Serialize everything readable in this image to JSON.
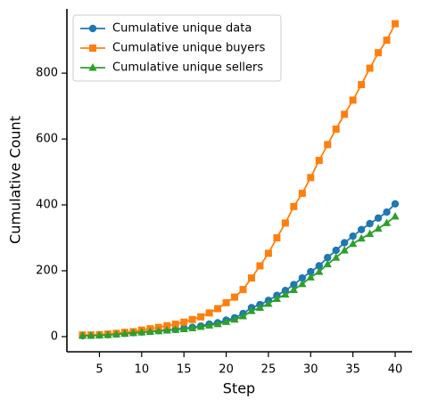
{
  "chart_data": {
    "type": "line",
    "xlabel": "Step",
    "ylabel": "Cumulative Count",
    "x": [
      3,
      4,
      5,
      6,
      7,
      8,
      9,
      10,
      11,
      12,
      13,
      14,
      15,
      16,
      17,
      18,
      19,
      20,
      21,
      22,
      23,
      24,
      25,
      26,
      27,
      28,
      29,
      30,
      31,
      32,
      33,
      34,
      35,
      36,
      37,
      38,
      39,
      40
    ],
    "series": [
      {
        "name": "Cumulative unique data",
        "color": "#1f77b4",
        "marker": "circle",
        "values": [
          3,
          4,
          5,
          6,
          8,
          10,
          12,
          14,
          16,
          18,
          20,
          22,
          25,
          28,
          32,
          38,
          42,
          50,
          57,
          70,
          88,
          97,
          110,
          125,
          140,
          158,
          178,
          197,
          215,
          240,
          262,
          285,
          305,
          325,
          343,
          360,
          378,
          403
        ]
      },
      {
        "name": "Cumulative unique buyers",
        "color": "#ff7f0e",
        "marker": "square",
        "values": [
          5,
          5,
          6,
          8,
          10,
          13,
          15,
          20,
          24,
          28,
          33,
          38,
          44,
          52,
          60,
          72,
          85,
          103,
          120,
          143,
          178,
          215,
          253,
          300,
          345,
          395,
          435,
          483,
          535,
          583,
          630,
          675,
          718,
          765,
          815,
          862,
          900,
          950
        ]
      },
      {
        "name": "Cumulative unique sellers",
        "color": "#2ca02c",
        "marker": "triangle",
        "values": [
          3,
          3,
          4,
          5,
          7,
          9,
          11,
          13,
          15,
          17,
          19,
          21,
          23,
          26,
          30,
          34,
          38,
          45,
          52,
          62,
          78,
          88,
          100,
          115,
          128,
          142,
          160,
          180,
          197,
          220,
          240,
          262,
          282,
          298,
          312,
          328,
          345,
          365
        ]
      }
    ],
    "xlim": [
      1.15,
      42.0
    ],
    "xticks": [
      5,
      10,
      15,
      20,
      25,
      30,
      35,
      40
    ],
    "ylim": [
      -46,
      995
    ],
    "yticks": [
      0,
      200,
      400,
      600,
      800
    ],
    "legend": "upper left",
    "grid": false
  }
}
